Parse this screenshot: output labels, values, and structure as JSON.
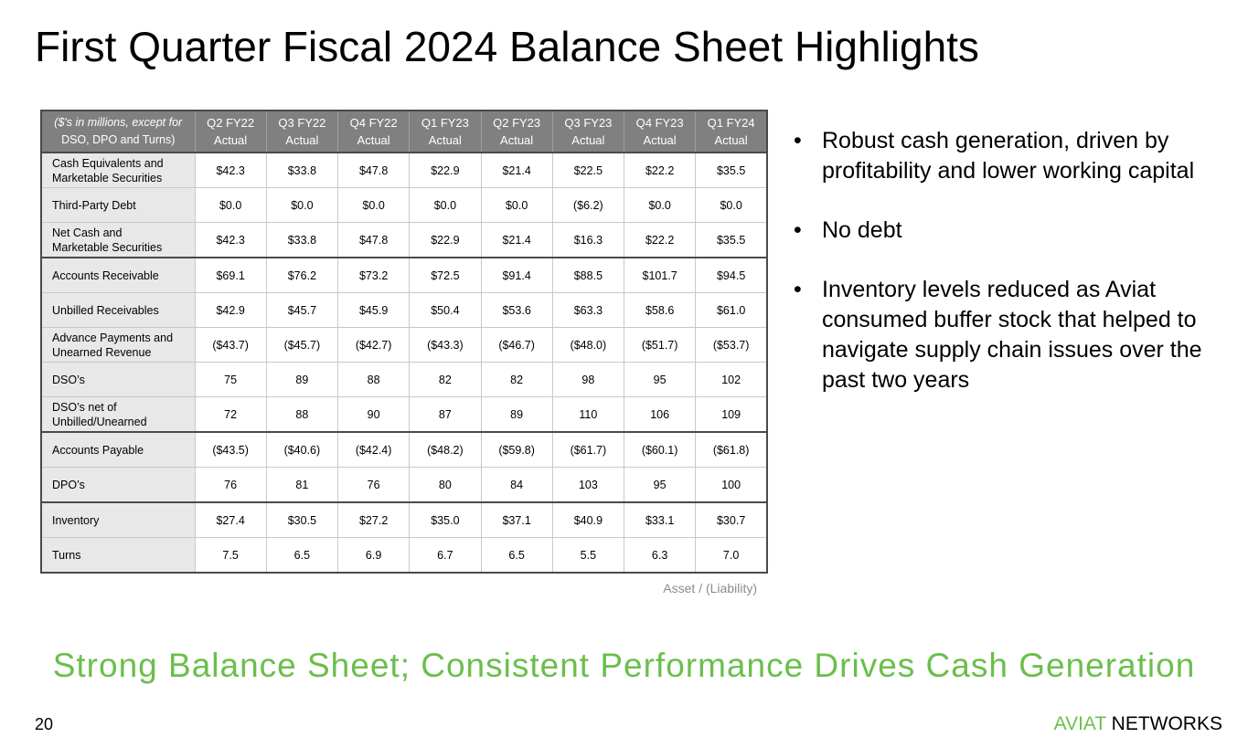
{
  "slide": {
    "title": "First Quarter Fiscal 2024 Balance Sheet Highlights",
    "page_number": "20",
    "tagline": "Strong Balance Sheet; Consistent Performance Drives Cash Generation",
    "brand_part1": "AVIAT",
    "brand_part2": "NETWORKS",
    "note": "Asset / (Liability)"
  },
  "table": {
    "corner_line1": "($'s in millions, except for",
    "corner_line2": "DSO, DPO and Turns)",
    "columns": [
      {
        "q": "Q2 FY22",
        "s": "Actual"
      },
      {
        "q": "Q3 FY22",
        "s": "Actual"
      },
      {
        "q": "Q4 FY22",
        "s": "Actual"
      },
      {
        "q": "Q1 FY23",
        "s": "Actual"
      },
      {
        "q": "Q2 FY23",
        "s": "Actual"
      },
      {
        "q": "Q3 FY23",
        "s": "Actual"
      },
      {
        "q": "Q4 FY23",
        "s": "Actual"
      },
      {
        "q": "Q1 FY24",
        "s": "Actual"
      }
    ],
    "rows": [
      {
        "label_1": "Cash Equivalents and",
        "label_2": "Marketable Securities",
        "v": [
          "$42.3",
          "$33.8",
          "$47.8",
          "$22.9",
          "$21.4",
          "$22.5",
          "$22.2",
          "$35.5"
        ]
      },
      {
        "label_1": "Third-Party Debt",
        "label_2": "",
        "v": [
          "$0.0",
          "$0.0",
          "$0.0",
          "$0.0",
          "$0.0",
          "($6.2)",
          "$0.0",
          "$0.0"
        ]
      },
      {
        "label_1": "Net Cash and",
        "label_2": "Marketable Securities",
        "v": [
          "$42.3",
          "$33.8",
          "$47.8",
          "$22.9",
          "$21.4",
          "$16.3",
          "$22.2",
          "$35.5"
        ]
      },
      {
        "label_1": "Accounts Receivable",
        "label_2": "",
        "v": [
          "$69.1",
          "$76.2",
          "$73.2",
          "$72.5",
          "$91.4",
          "$88.5",
          "$101.7",
          "$94.5"
        ]
      },
      {
        "label_1": "Unbilled Receivables",
        "label_2": "",
        "v": [
          "$42.9",
          "$45.7",
          "$45.9",
          "$50.4",
          "$53.6",
          "$63.3",
          "$58.6",
          "$61.0"
        ]
      },
      {
        "label_1": "Advance Payments and",
        "label_2": "Unearned Revenue",
        "v": [
          "($43.7)",
          "($45.7)",
          "($42.7)",
          "($43.3)",
          "($46.7)",
          "($48.0)",
          "($51.7)",
          "($53.7)"
        ]
      },
      {
        "label_1": "DSO’s",
        "label_2": "",
        "v": [
          "75",
          "89",
          "88",
          "82",
          "82",
          "98",
          "95",
          "102"
        ]
      },
      {
        "label_1": "DSO’s net of",
        "label_2": "Unbilled/Unearned",
        "v": [
          "72",
          "88",
          "90",
          "87",
          "89",
          "110",
          "106",
          "109"
        ]
      },
      {
        "label_1": "Accounts Payable",
        "label_2": "",
        "v": [
          "($43.5)",
          "($40.6)",
          "($42.4)",
          "($48.2)",
          "($59.8)",
          "($61.7)",
          "($60.1)",
          "($61.8)"
        ]
      },
      {
        "label_1": "DPO’s",
        "label_2": "",
        "v": [
          "76",
          "81",
          "76",
          "80",
          "84",
          "103",
          "95",
          "100"
        ]
      },
      {
        "label_1": "Inventory",
        "label_2": "",
        "v": [
          "$27.4",
          "$30.5",
          "$27.2",
          "$35.0",
          "$37.1",
          "$40.9",
          "$33.1",
          "$30.7"
        ]
      },
      {
        "label_1": "Turns",
        "label_2": "",
        "v": [
          "7.5",
          "6.5",
          "6.9",
          "6.7",
          "6.5",
          "5.5",
          "6.3",
          "7.0"
        ]
      }
    ]
  },
  "bullets": [
    "Robust cash generation, driven by profitability and lower working capital",
    "No debt",
    "Inventory levels reduced as Aviat consumed buffer stock that helped to navigate supply chain issues over the past two years"
  ],
  "colors": {
    "accent_green": "#6abf4b",
    "header_gray": "#808080",
    "label_bg": "#e8e8e8"
  }
}
